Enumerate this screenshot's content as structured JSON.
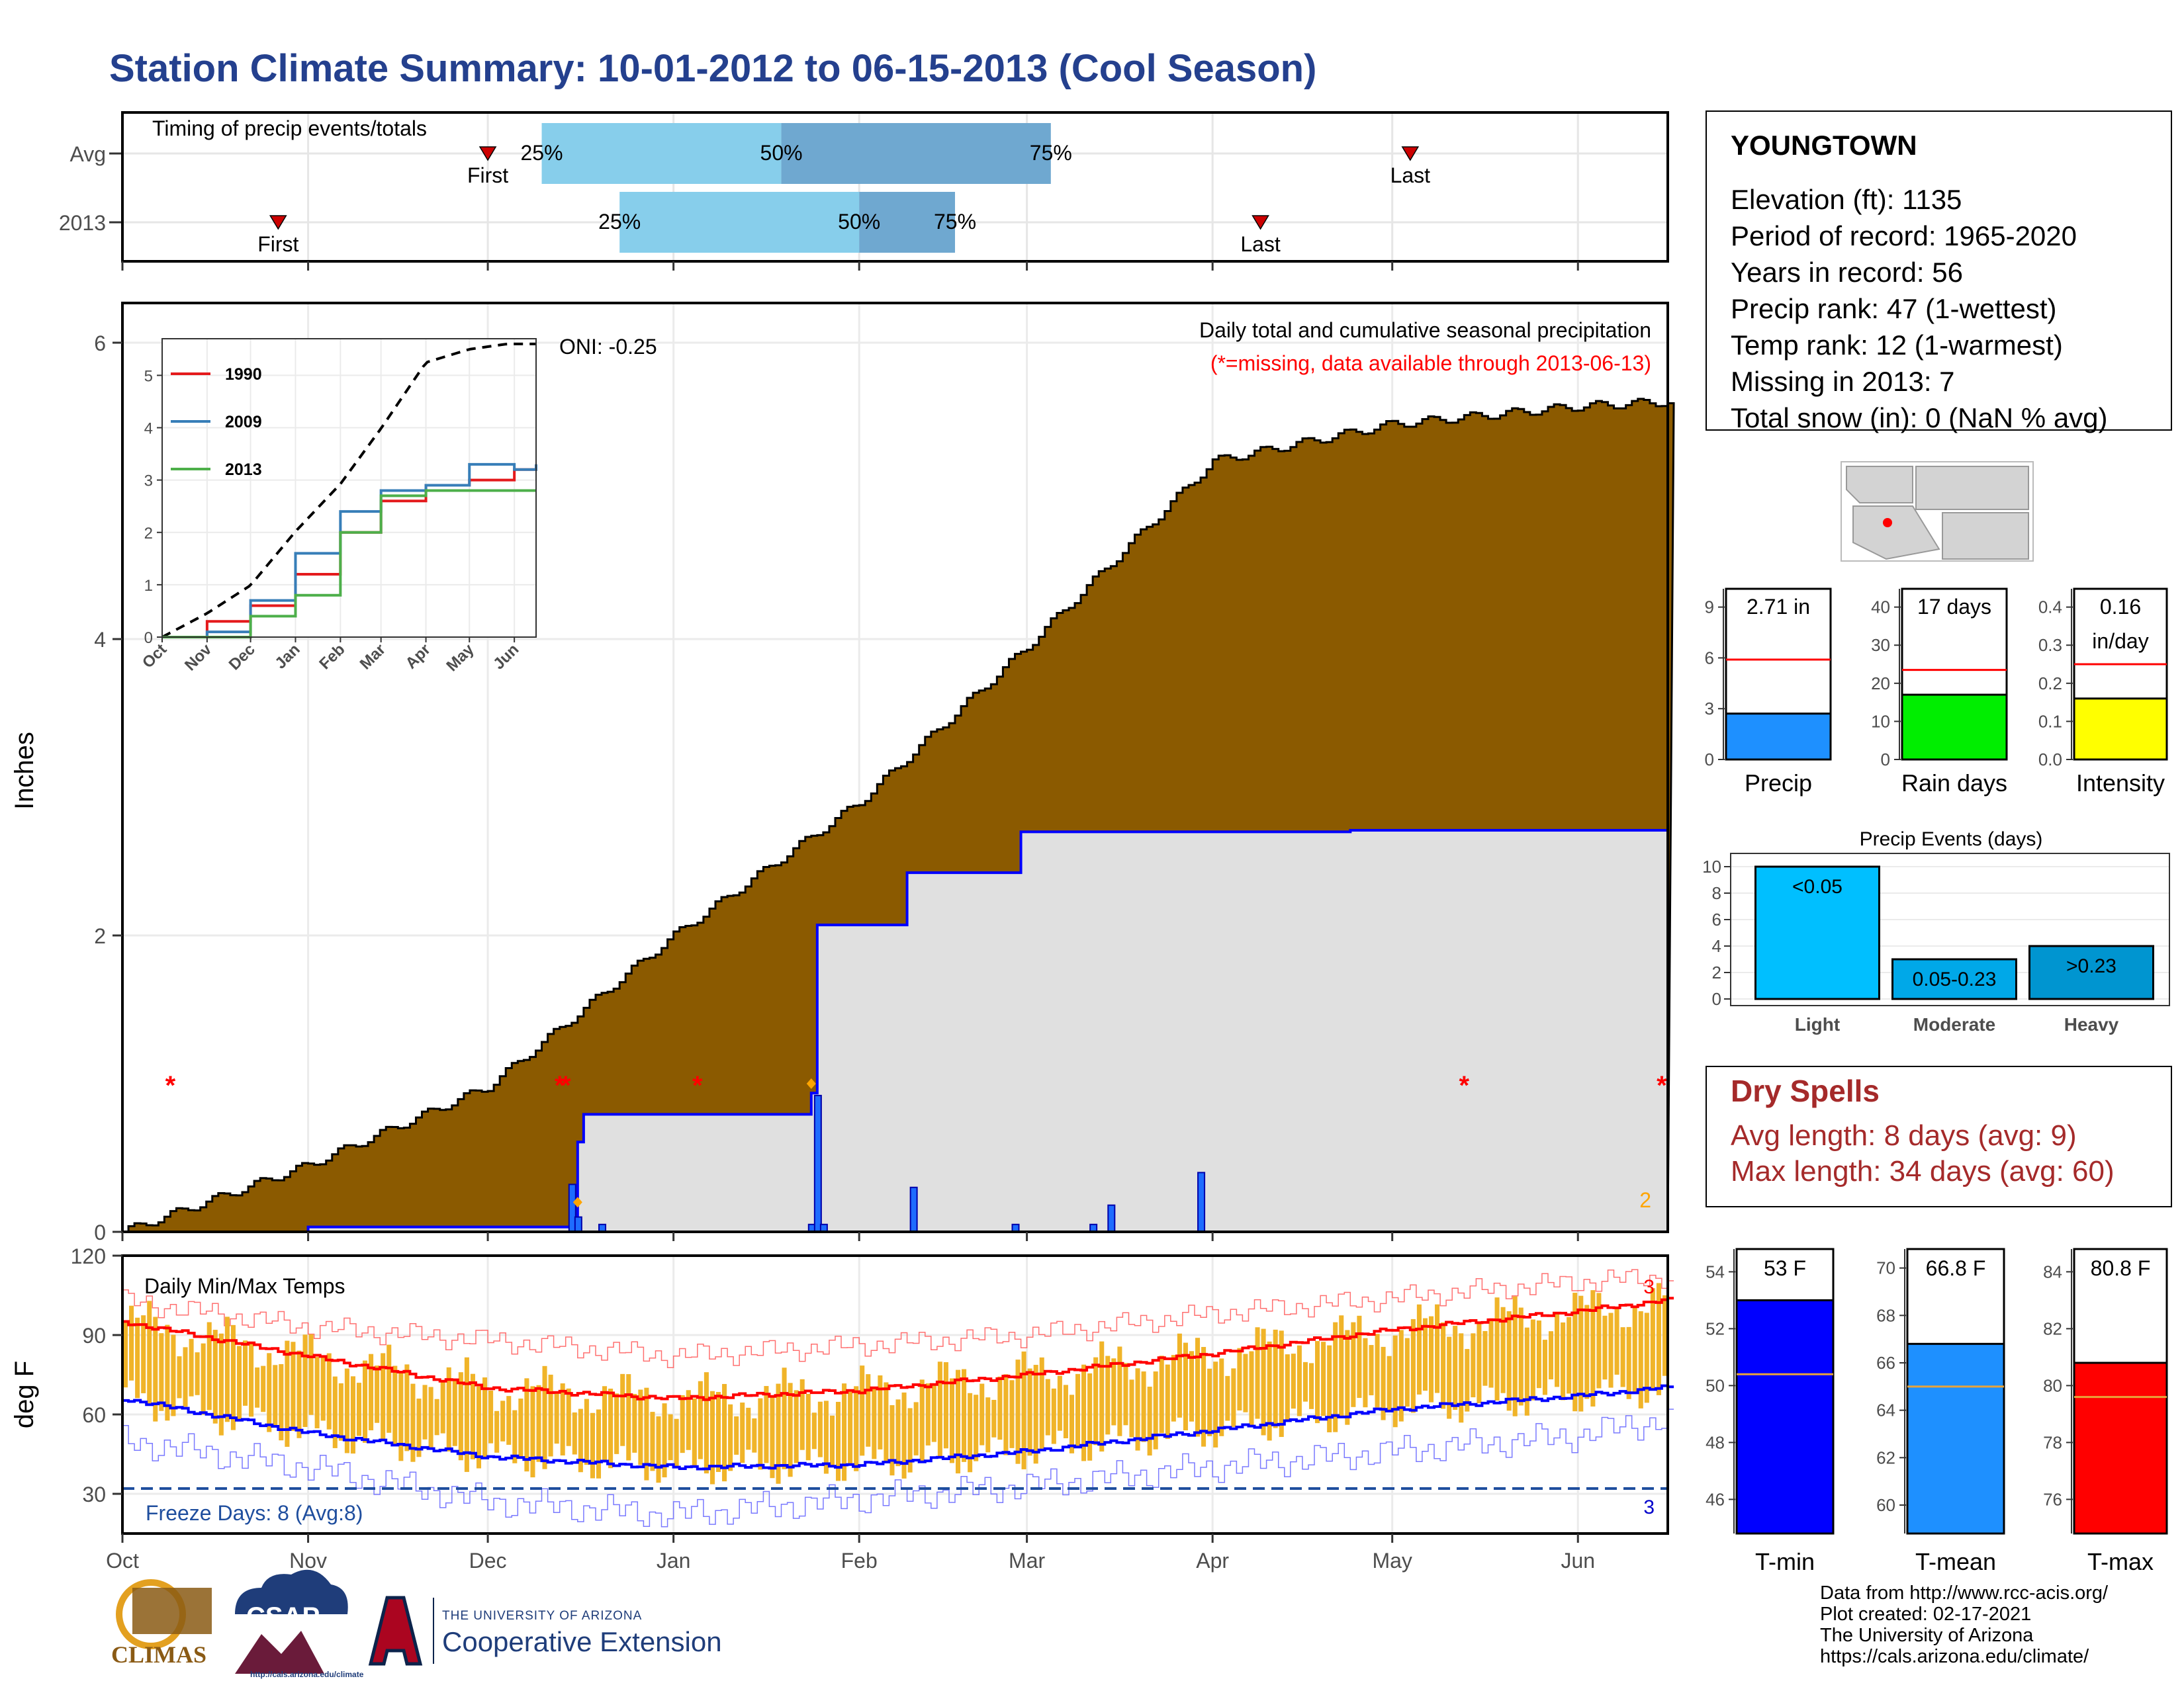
{
  "title": "Station Climate Summary: 10-01-2012 to 06-15-2013 (Cool Season)",
  "colors": {
    "title": "#24408e",
    "cum_fill": "#8B5A00",
    "obs_fill": "#e0e0e0",
    "obs_line": "#0000ff",
    "temp_bar": "#f0b429",
    "tmax_avg": "#ff0000",
    "tmin_avg": "#0000ff",
    "dry": "#a52a2a",
    "freeze": "#1f4e9e"
  },
  "timing": {
    "title": "Timing of precip events/totals",
    "rows": [
      {
        "label": "Avg",
        "first_label": "First",
        "first": "Dec 01",
        "p25": "Dec 10",
        "p50": "Jan 19",
        "p75": "Mar 05",
        "last": "May 04",
        "last_label": "Last"
      },
      {
        "label": "2013",
        "first_label": "First",
        "first": "Oct 27",
        "p25": "Dec 23",
        "p50": "Feb 01",
        "p75": "Feb 17",
        "last": "Apr 09",
        "last_label": "Last"
      }
    ],
    "pct_labels": [
      "25%",
      "50%",
      "75%"
    ]
  },
  "precip_chart": {
    "ylabel": "Inches",
    "yticks": [
      "0",
      "2",
      "4",
      "6"
    ],
    "oni": "ONI: -0.25",
    "heading": "Daily total and cumulative seasonal precipitation",
    "missing_note": "(*=missing, data available through 2013-06-13)",
    "corner_count": "2",
    "xticks": [
      "Oct",
      "Nov",
      "Dec",
      "Jan",
      "Feb",
      "Mar",
      "Apr",
      "May",
      "Jun"
    ]
  },
  "chart_data": [
    {
      "type": "area",
      "name": "cumulative precipitation",
      "x_dates": [
        "2012-10-01",
        "2012-11-01",
        "2012-12-01",
        "2013-01-01",
        "2013-02-01",
        "2013-03-01",
        "2013-04-01",
        "2013-05-01",
        "2013-06-01",
        "2013-06-15"
      ],
      "series": [
        {
          "name": "avg",
          "values": [
            0.0,
            0.45,
            0.98,
            2.0,
            2.9,
            3.95,
            5.2,
            5.45,
            5.57,
            5.6
          ]
        },
        {
          "name": "2013",
          "values": [
            0.0,
            0.03,
            0.03,
            0.72,
            1.88,
            2.45,
            2.68,
            2.69,
            2.71,
            2.71
          ]
        }
      ],
      "ylim": [
        0,
        6
      ]
    },
    {
      "type": "line",
      "name": "inset cumulative",
      "xticks": [
        "Oct",
        "Nov",
        "Dec",
        "Jan",
        "Feb",
        "Mar",
        "Apr",
        "May",
        "Jun"
      ],
      "yticks": [
        "0",
        "1",
        "2",
        "3",
        "4",
        "5"
      ],
      "series": [
        {
          "name": "1990",
          "values": [
            0,
            0.3,
            0.6,
            1.2,
            2.0,
            2.6,
            2.9,
            3.0,
            3.2,
            3.3
          ]
        },
        {
          "name": "2009",
          "values": [
            0,
            0.1,
            0.7,
            1.6,
            2.4,
            2.8,
            2.9,
            3.3,
            3.2,
            3.3
          ]
        },
        {
          "name": "2013",
          "values": [
            0,
            0,
            0.4,
            0.8,
            2.0,
            2.7,
            2.8,
            2.8,
            2.8,
            2.8
          ]
        }
      ],
      "ylim": [
        0,
        5.7
      ]
    },
    {
      "type": "line",
      "name": "daily temps",
      "ylabel": "deg F",
      "yticks": [
        "30",
        "60",
        "90",
        "120"
      ],
      "ylim": [
        15,
        120
      ],
      "x_dates": [
        "Oct 01",
        "Nov 01",
        "Dec 01",
        "Jan 01",
        "Feb 01",
        "Mar 01",
        "Apr 01",
        "May 01",
        "Jun 01",
        "Jun 15"
      ],
      "series": [
        {
          "name": "avg max",
          "values": [
            95,
            82,
            70,
            66,
            69,
            75,
            83,
            92,
            99,
            103
          ]
        },
        {
          "name": "avg min",
          "values": [
            66,
            53,
            44,
            40,
            41,
            46,
            54,
            62,
            67,
            70
          ]
        },
        {
          "name": "record max",
          "values": [
            103,
            93,
            88,
            82,
            86,
            90,
            98,
            104,
            110,
            112
          ]
        },
        {
          "name": "record min",
          "values": [
            50,
            40,
            27,
            22,
            28,
            33,
            40,
            46,
            52,
            58
          ]
        }
      ]
    },
    {
      "type": "bar",
      "name": "precip total",
      "values": [
        2.71
      ],
      "ref": 5.9,
      "yticks": [
        "0",
        "3",
        "6",
        "9"
      ]
    },
    {
      "type": "bar",
      "name": "rain days",
      "values": [
        17
      ],
      "ref": 23.5,
      "yticks": [
        "0",
        "10",
        "20",
        "30",
        "40"
      ]
    },
    {
      "type": "bar",
      "name": "intensity",
      "values": [
        0.16
      ],
      "ref": 0.25,
      "yticks": [
        "0.0",
        "0.1",
        "0.2",
        "0.3",
        "0.4"
      ]
    },
    {
      "type": "bar",
      "name": "precip events",
      "categories": [
        "Light",
        "Moderate",
        "Heavy"
      ],
      "values": [
        10,
        3,
        4
      ],
      "yticks": [
        "0",
        "2",
        "4",
        "6",
        "8",
        "10"
      ]
    },
    {
      "type": "bar",
      "name": "T-min",
      "values": [
        53
      ],
      "ref": 50.4,
      "yticks": [
        "46",
        "48",
        "50",
        "52",
        "54"
      ]
    },
    {
      "type": "bar",
      "name": "T-mean",
      "values": [
        66.8
      ],
      "ref": 65,
      "yticks": [
        "60",
        "62",
        "64",
        "66",
        "68",
        "70"
      ]
    },
    {
      "type": "bar",
      "name": "T-max",
      "values": [
        80.8
      ],
      "ref": 79.6,
      "yticks": [
        "76",
        "78",
        "80",
        "82",
        "84"
      ]
    }
  ],
  "inset": {
    "legend": [
      "1990",
      "2009",
      "2013"
    ],
    "legend_colors": [
      "#e41a1c",
      "#377eb8",
      "#4daf4a"
    ]
  },
  "temp_chart": {
    "heading": "Daily Min/Max Temps",
    "freeze": "Freeze Days: 8 (Avg:8)",
    "top_count": "3",
    "bottom_count": "3"
  },
  "station": {
    "name": "YOUNGTOWN",
    "lines": [
      "Elevation (ft): 1135",
      "Period of record: 1965-2020",
      "Years in record: 56",
      "Precip rank: 47 (1-wettest)",
      "Temp rank: 12 (1-warmest)",
      "Missing in 2013: 7",
      "Total snow (in): 0 (NaN % avg)"
    ]
  },
  "mini_bars": {
    "precip": {
      "value_label": "2.71 in",
      "name": "Precip",
      "color": "#1e90ff"
    },
    "rain_days": {
      "value_label": "17 days",
      "name": "Rain days",
      "color": "#00ee00"
    },
    "intensity": {
      "value_label_1": "0.16",
      "value_label_2": "in/day",
      "name": "Intensity",
      "color": "#ffff00"
    }
  },
  "events": {
    "title": "Precip Events (days)",
    "bars": [
      {
        "label": "<0.05",
        "cat": "Light",
        "color": "#00bfff"
      },
      {
        "label": "0.05-0.23",
        "cat": "Moderate",
        "color": "#00a8e8"
      },
      {
        "label": ">0.23",
        "cat": "Heavy",
        "color": "#0095d0"
      }
    ]
  },
  "dry_spells": {
    "title": "Dry Spells",
    "avg": "Avg length: 8 days (avg: 9)",
    "max": "Max length: 34 days (avg: 60)"
  },
  "temp_bars": {
    "tmin": {
      "value_label": "53 F",
      "name": "T-min",
      "color": "#0000ff"
    },
    "tmean": {
      "value_label": "66.8 F",
      "name": "T-mean",
      "color": "#1e90ff"
    },
    "tmax": {
      "value_label": "80.8 F",
      "name": "T-max",
      "color": "#ff0000"
    }
  },
  "credits": [
    "Data from http://www.rcc-acis.org/",
    "Plot created: 02-17-2021",
    "The University of Arizona",
    "https://cals.arizona.edu/climate/"
  ],
  "logos": {
    "climas": "CLIMAS",
    "csap": "CSAP",
    "csap_url": "http://cals.arizona.edu/climate",
    "ua_top": "THE UNIVERSITY OF ARIZONA",
    "ua_bottom": "Cooperative Extension"
  }
}
